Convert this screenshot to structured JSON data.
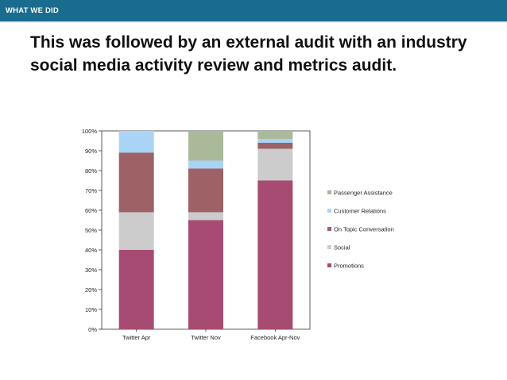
{
  "header": {
    "label": "WHAT WE DID"
  },
  "slide": {
    "title": "This was followed by an external audit with an industry social media activity review and metrics audit."
  },
  "chart_data": {
    "type": "bar",
    "stacked": true,
    "categories": [
      "Twitter Apr",
      "Twitter Nov",
      "Facebook  Apr-Nov"
    ],
    "series": [
      {
        "name": "Promotions",
        "color": "#a84b72",
        "values": [
          40,
          55,
          75
        ]
      },
      {
        "name": "Social",
        "color": "#cccccc",
        "values": [
          19,
          4,
          16
        ]
      },
      {
        "name": "On Topic Conversation",
        "color": "#9e6166",
        "values": [
          30,
          22,
          3
        ]
      },
      {
        "name": "Customer Relations",
        "color": "#aad4f5",
        "values": [
          11,
          4,
          2
        ]
      },
      {
        "name": "Passenger Assistance",
        "color": "#a9b999",
        "values": [
          0,
          15,
          4
        ]
      }
    ],
    "yticks": [
      "0%",
      "10%",
      "20%",
      "30%",
      "40%",
      "50%",
      "60%",
      "70%",
      "80%",
      "90%",
      "100%"
    ],
    "ylim": [
      0,
      100
    ],
    "legend": [
      "Passenger Assistance",
      "Customer Relations",
      "On Topic Conversation",
      "Social",
      "Promotions"
    ],
    "legend_position": "right",
    "xlabel": "",
    "ylabel": "",
    "title": ""
  }
}
